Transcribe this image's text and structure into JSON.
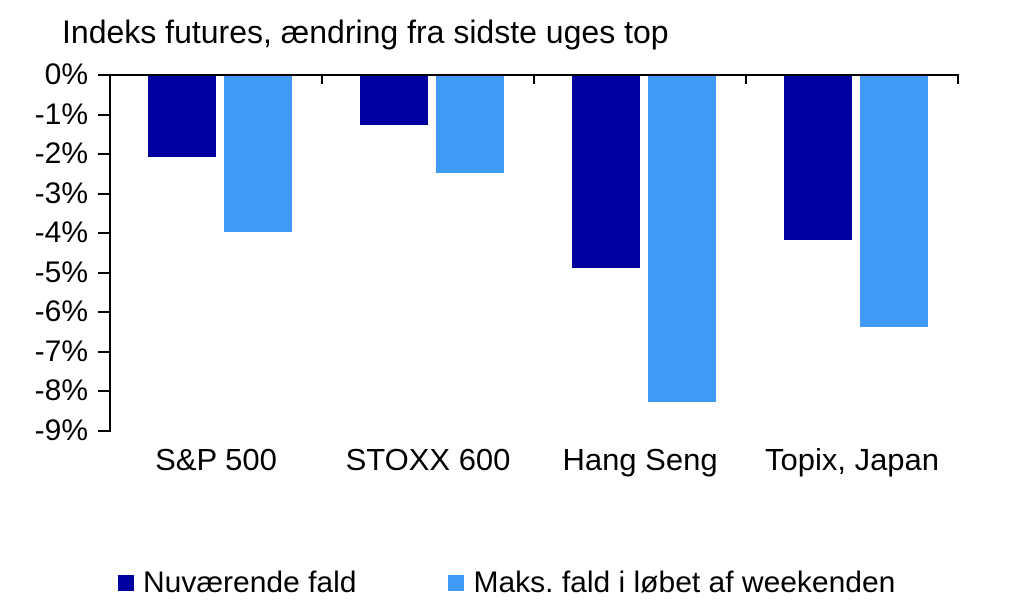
{
  "chart_data": {
    "type": "bar",
    "title": "Indeks futures, ændring fra sidste uges top",
    "categories": [
      "S&P 500",
      "STOXX 600",
      "Hang Seng",
      "Topix, Japan"
    ],
    "series": [
      {
        "name": "Nuværende fald",
        "color": "#0000A0",
        "values": [
          -2.1,
          -1.3,
          -4.9,
          -4.2
        ]
      },
      {
        "name": "Maks. fald i løbet af weekenden",
        "color": "#3E9AF5",
        "values": [
          -4.0,
          -2.5,
          -8.3,
          -6.4
        ]
      }
    ],
    "ylim": [
      -9,
      0
    ],
    "ytick_labels": [
      "0%",
      "-1%",
      "-2%",
      "-3%",
      "-4%",
      "-5%",
      "-6%",
      "-7%",
      "-8%",
      "-9%"
    ],
    "xlabel": "",
    "ylabel": "",
    "grid": false,
    "legend_position": "bottom"
  },
  "legend": {
    "items": [
      {
        "label": "Nuværende fald",
        "color": "#0000A0"
      },
      {
        "label": "Maks. fald i løbet af weekenden",
        "color": "#3E9AF5"
      }
    ]
  },
  "colors": {
    "axis": "#000000",
    "background": "#FFFFFF",
    "text": "#000000",
    "dark_blue": "#0000A0",
    "light_blue": "#3E9AF5"
  }
}
